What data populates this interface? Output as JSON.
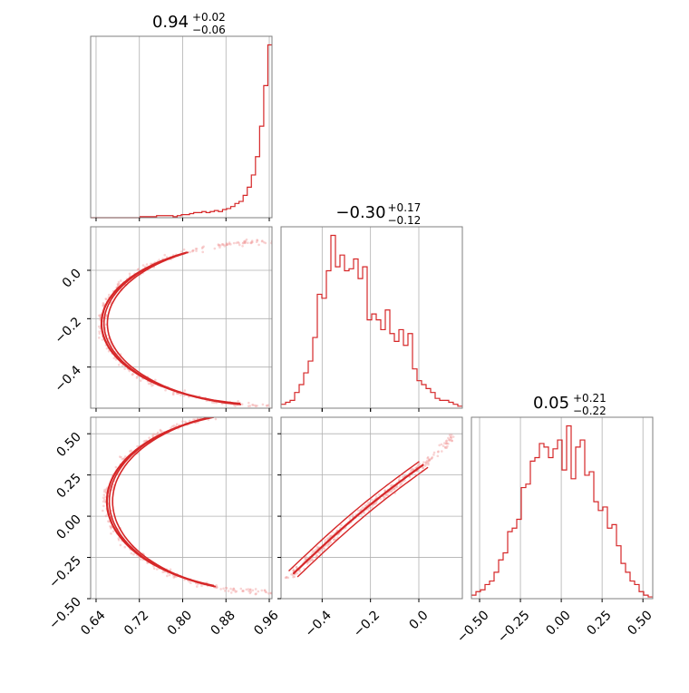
{
  "chart_data": [
    {
      "panel": "hist-param-1",
      "type": "histogram",
      "title": "0.94",
      "title_upper": "+0.02",
      "title_lower": "−0.06",
      "xlim": [
        0.63,
        0.965
      ],
      "xticks": [
        0.64,
        0.72,
        0.8,
        0.88,
        0.96
      ],
      "xtick_labels": [
        "0.64",
        "0.72",
        "0.80",
        "0.88",
        "0.96"
      ],
      "bin_edges_range": [
        0.63,
        0.965
      ],
      "counts": [
        0,
        0,
        0,
        0,
        0,
        0,
        0,
        0,
        0,
        0,
        0,
        0,
        1,
        1,
        1,
        1,
        2,
        2,
        2,
        2,
        1,
        2,
        3,
        3,
        4,
        5,
        5,
        6,
        5,
        6,
        7,
        6,
        8,
        9,
        11,
        14,
        16,
        22,
        30,
        42,
        60,
        90,
        130,
        170
      ]
    },
    {
      "panel": "hist-param-2",
      "type": "histogram",
      "title": "−0.30",
      "title_upper": "+0.17",
      "title_lower": "−0.12",
      "xlim": [
        -0.57,
        0.18
      ],
      "xticks": [
        -0.4,
        -0.2,
        0.0
      ],
      "xtick_labels": [
        "−0.4",
        "−0.2",
        "0.0"
      ],
      "bin_edges_range": [
        -0.57,
        0.18
      ],
      "counts": [
        2,
        3,
        4,
        8,
        12,
        18,
        24,
        36,
        58,
        56,
        70,
        88,
        72,
        78,
        70,
        71,
        76,
        66,
        72,
        45,
        48,
        45,
        40,
        50,
        38,
        34,
        40,
        32,
        38,
        20,
        14,
        12,
        10,
        8,
        5,
        4,
        4,
        3,
        2,
        1
      ]
    },
    {
      "panel": "hist-param-3",
      "type": "histogram",
      "title": "0.05",
      "title_upper": "+0.21",
      "title_lower": "−0.22",
      "xlim": [
        -0.55,
        0.56
      ],
      "xticks": [
        -0.5,
        -0.25,
        0.0,
        0.25,
        0.5
      ],
      "xtick_labels": [
        "−0.50",
        "−0.25",
        "0.00",
        "0.25",
        "0.50"
      ],
      "bin_edges_range": [
        -0.55,
        0.56
      ],
      "counts": [
        2,
        4,
        5,
        8,
        10,
        15,
        22,
        26,
        38,
        40,
        45,
        63,
        65,
        78,
        80,
        88,
        86,
        80,
        85,
        90,
        73,
        98,
        68,
        86,
        90,
        70,
        72,
        55,
        50,
        52,
        40,
        42,
        30,
        20,
        15,
        10,
        8,
        4,
        2,
        1
      ]
    },
    {
      "panel": "scatter-param1-vs-param2",
      "type": "scatter",
      "xlim": [
        0.63,
        0.965
      ],
      "ylim": [
        -0.57,
        0.18
      ],
      "yticks": [
        0.0,
        -0.2,
        -0.4
      ],
      "ytick_labels": [
        "0.0",
        "−0.2",
        "−0.4"
      ],
      "curve_center": [
        0.96,
        -0.22
      ],
      "curve_radius": [
        0.31,
        0.34
      ],
      "contour_angle_range": [
        -80,
        60
      ]
    },
    {
      "panel": "scatter-param1-vs-param3",
      "type": "scatter",
      "xlim": [
        0.63,
        0.965
      ],
      "ylim": [
        -0.5,
        0.6
      ],
      "yticks": [
        0.5,
        0.25,
        0.0,
        -0.25,
        -0.5
      ],
      "ytick_labels": [
        "0.50",
        "0.25",
        "0.00",
        "−0.25",
        "−0.50"
      ],
      "xticks": [
        0.64,
        0.72,
        0.8,
        0.88,
        0.96
      ],
      "xtick_labels": [
        "0.64",
        "0.72",
        "0.80",
        "0.88",
        "0.96"
      ],
      "curve_center": [
        0.96,
        0.09
      ],
      "curve_radius": [
        0.3,
        0.55
      ],
      "contour_angle_range": [
        -70,
        70
      ]
    },
    {
      "panel": "scatter-param2-vs-param3",
      "type": "scatter",
      "xlim": [
        -0.57,
        0.18
      ],
      "ylim": [
        -0.5,
        0.6
      ],
      "xticks": [
        -0.4,
        -0.2,
        0.0
      ],
      "xtick_labels": [
        "−0.4",
        "−0.2",
        "0.0"
      ],
      "trend_start": [
        -0.52,
        -0.35
      ],
      "trend_end": [
        0.02,
        0.31
      ],
      "outlier_end": [
        0.17,
        0.52
      ]
    }
  ],
  "colors": {
    "series": "#d62728",
    "grid": "#b0b0b0",
    "frame": "#7f7f7f",
    "points": "#f2a0a0"
  }
}
